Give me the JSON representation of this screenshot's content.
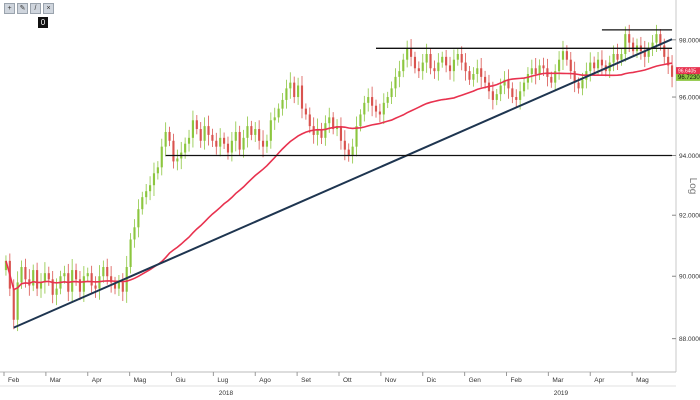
{
  "toolbar": {
    "icons": [
      "plus-icon",
      "pencil-icon",
      "slash-icon",
      "close-icon"
    ],
    "plus": "+",
    "pencil": "✎",
    "slash": "/",
    "close": "×",
    "badge": "0"
  },
  "chart_data": {
    "type": "candlestick",
    "y_scale": "log",
    "y_scale_label": "Log",
    "ylim": [
      87.2,
      99.2
    ],
    "y_ticks": [
      "98.0000",
      "96.0000",
      "94.0000",
      "92.0000",
      "90.0000",
      "88.0000"
    ],
    "y_tick_values": [
      98,
      96,
      94,
      92,
      90,
      88
    ],
    "x_ticks": [
      "Feb",
      "Mar",
      "Apr",
      "Mag",
      "Giu",
      "Lug",
      "Ago",
      "Set",
      "Ott",
      "Nov",
      "Dic",
      "Gen",
      "Feb",
      "Mar",
      "Apr",
      "Mag"
    ],
    "years": [
      "2018",
      "2019"
    ],
    "last_price_label": "96.7230",
    "moving_average_label": "96.6405",
    "colors": {
      "up": "#8cc63f",
      "down": "#d9534f",
      "ma": "#e8324f",
      "trend": "#1e3550",
      "level": "#111111"
    },
    "series": [
      {
        "values": [
          90.5,
          89.6,
          88.6,
          89.8,
          90.3,
          89.9,
          89.7,
          90.2,
          89.6,
          89.8,
          90.1,
          89.9,
          89.4,
          89.6,
          90.0,
          90.1,
          89.5,
          90.2,
          89.9,
          89.5,
          90.0,
          90.1,
          89.7,
          89.6,
          90.0,
          90.3,
          90.0,
          89.8,
          89.6,
          89.8,
          89.5,
          90.3,
          91.2,
          91.6,
          92.2,
          92.6,
          92.8,
          93.0,
          93.4,
          93.6,
          94.3,
          94.8,
          94.5,
          93.8,
          93.9,
          94.1,
          94.4,
          94.6,
          95.2,
          94.9,
          94.5,
          95.0,
          94.7,
          94.5,
          94.3,
          94.6,
          94.4,
          94.1,
          94.5,
          94.8,
          94.2,
          94.6,
          95.0,
          94.7,
          94.9,
          94.5,
          94.3,
          94.5,
          95.2,
          95.3,
          95.6,
          95.9,
          96.3,
          96.5,
          96.0,
          96.4,
          95.6,
          95.4,
          95.0,
          94.7,
          94.9,
          94.6,
          95.1,
          95.3,
          94.9,
          95.0,
          94.5,
          94.2,
          94.0,
          94.3,
          95.0,
          95.4,
          95.8,
          96.0,
          95.7,
          95.5,
          95.4,
          95.8,
          96.0,
          96.3,
          96.7,
          96.9,
          97.3,
          97.7,
          97.4,
          97.0,
          96.9,
          97.2,
          97.5,
          97.0,
          96.9,
          97.2,
          97.4,
          97.1,
          96.9,
          97.3,
          97.5,
          97.2,
          96.9,
          96.6,
          96.8,
          97.0,
          96.7,
          96.5,
          96.2,
          95.9,
          96.1,
          96.4,
          96.6,
          96.3,
          96.0,
          95.9,
          96.2,
          96.5,
          96.8,
          97.0,
          96.8,
          97.1,
          97.0,
          96.7,
          96.5,
          96.9,
          97.3,
          97.6,
          97.3,
          96.9,
          96.5,
          96.3,
          96.6,
          96.9,
          97.2,
          97.0,
          97.3,
          97.1,
          96.9,
          97.2,
          97.5,
          97.3,
          97.5,
          98.2,
          97.9,
          97.6,
          97.8,
          97.6,
          97.4,
          97.7,
          97.9,
          98.2,
          97.8,
          97.4,
          97.1,
          96.7
        ]
      }
    ]
  }
}
